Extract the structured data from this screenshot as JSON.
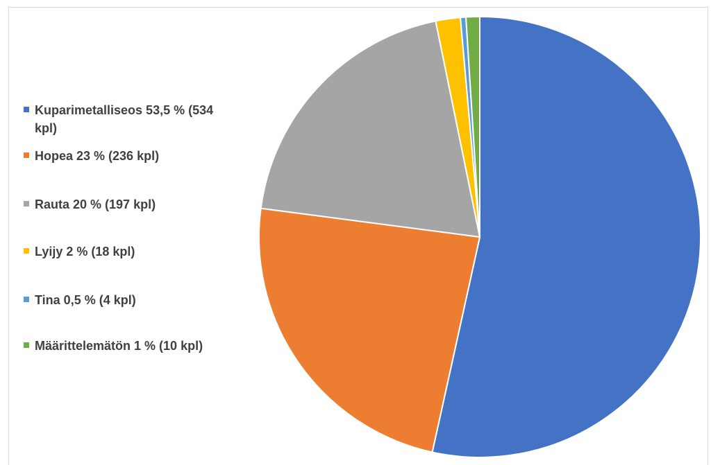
{
  "chart_data": {
    "type": "pie",
    "title": "",
    "slices": [
      {
        "label": "Kuparimetalliseos 53,5 % (534 kpl)",
        "value": 534,
        "percent": 53.5,
        "color": "#4472c4"
      },
      {
        "label": "Hopea 23 % (236 kpl)",
        "value": 236,
        "percent": 23,
        "color": "#ed7d31"
      },
      {
        "label": "Rauta 20 % (197 kpl)",
        "value": 197,
        "percent": 20,
        "color": "#a5a5a5"
      },
      {
        "label": "Lyijy 2 % (18 kpl)",
        "value": 18,
        "percent": 2,
        "color": "#ffc000"
      },
      {
        "label": "Tina 0,5 % (4 kpl)",
        "value": 4,
        "percent": 0.5,
        "color": "#5b9bd5"
      },
      {
        "label": "Määrittelemätön 1 % (10 kpl)",
        "value": 10,
        "percent": 1,
        "color": "#70ad47"
      }
    ],
    "legend_position": "left",
    "slice_border_color": "#ffffff"
  }
}
